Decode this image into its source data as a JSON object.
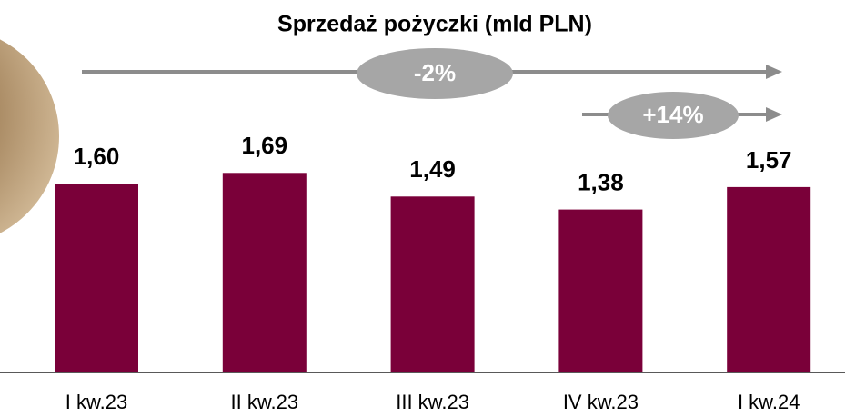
{
  "chart_data": {
    "type": "bar",
    "title": "Sprzedaż pożyczki (mld PLN)",
    "categories": [
      "I kw.23",
      "II kw.23",
      "III kw.23",
      "IV kw.23",
      "I kw.24"
    ],
    "values": [
      1.6,
      1.69,
      1.49,
      1.38,
      1.57
    ],
    "value_labels": [
      "1,60",
      "1,69",
      "1,49",
      "1,38",
      "1,57"
    ],
    "color": "#7a0039",
    "annotations": [
      {
        "text": "-2%"
      },
      {
        "text": "+14%"
      }
    ]
  }
}
